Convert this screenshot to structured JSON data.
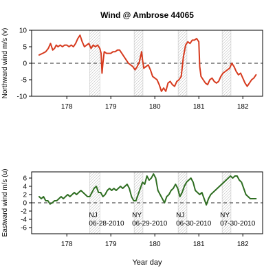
{
  "title": "Wind @ Ambrose 44065",
  "xlabel": "Year day",
  "colors": {
    "north": "#d63a1e",
    "east": "#2f6e22",
    "hatch": "#bdbdbd",
    "axis": "#000000",
    "zero": "#555555"
  },
  "chart_data": [
    {
      "type": "line",
      "ylabel": "Northward wind m/s (v)",
      "xlim": [
        177.2,
        182.45
      ],
      "ylim": [
        -10,
        10
      ],
      "xticks": [
        178,
        179,
        180,
        181,
        182
      ],
      "yticks": [
        -10,
        -5,
        0,
        5,
        10
      ],
      "zero_line": 0,
      "shaded_spans": [
        [
          178.52,
          178.75
        ],
        [
          179.53,
          179.73
        ],
        [
          180.53,
          180.73
        ],
        [
          181.53,
          181.73
        ]
      ],
      "series": [
        {
          "x": [
            177.37,
            177.45,
            177.52,
            177.58,
            177.63,
            177.68,
            177.72,
            177.76,
            177.8,
            177.85,
            177.9,
            177.95,
            178.0,
            178.05,
            178.1,
            178.15,
            178.2,
            178.25,
            178.3,
            178.35,
            178.4,
            178.45,
            178.5,
            178.55,
            178.6,
            178.65,
            178.7,
            178.75,
            178.78,
            178.8,
            178.82,
            178.85,
            178.9,
            178.95,
            179.0,
            179.05,
            179.1,
            179.15,
            179.2,
            179.25,
            179.3,
            179.35,
            179.4,
            179.45,
            179.5,
            179.55,
            179.6,
            179.65,
            179.7,
            179.72,
            179.75,
            179.8,
            179.85,
            179.9,
            179.95,
            180.0,
            180.05,
            180.1,
            180.15,
            180.2,
            180.25,
            180.3,
            180.35,
            180.4,
            180.45,
            180.5,
            180.55,
            180.6,
            180.65,
            180.7,
            180.75,
            180.8,
            180.85,
            180.9,
            180.95,
            181.0,
            181.02,
            181.05,
            181.1,
            181.15,
            181.2,
            181.25,
            181.3,
            181.35,
            181.4,
            181.45,
            181.5,
            181.55,
            181.6,
            181.65,
            181.7,
            181.75,
            181.8,
            181.85,
            181.9,
            181.95,
            182.0,
            182.05,
            182.1,
            182.15,
            182.2,
            182.25,
            182.3
          ],
          "y": [
            2.5,
            3.0,
            3.5,
            4.5,
            6.0,
            4.0,
            4.5,
            5.5,
            5.0,
            5.5,
            5.0,
            5.5,
            5.5,
            5.0,
            5.5,
            5.0,
            6.0,
            7.5,
            8.5,
            6.5,
            5.0,
            5.5,
            6.0,
            4.5,
            5.5,
            5.0,
            5.5,
            4.5,
            3.0,
            -3.0,
            0.0,
            3.5,
            3.0,
            3.0,
            3.0,
            3.5,
            3.5,
            4.0,
            4.0,
            3.0,
            2.0,
            1.0,
            0.0,
            -0.5,
            -1.0,
            -2.0,
            -1.0,
            0.5,
            3.5,
            1.0,
            -1.5,
            -1.0,
            -0.5,
            -2.0,
            -4.0,
            -4.5,
            -5.0,
            -6.5,
            -8.5,
            -7.5,
            -8.5,
            -6.0,
            -5.5,
            -6.5,
            -7.0,
            -5.5,
            -5.0,
            -4.0,
            2.0,
            5.5,
            6.5,
            6.0,
            7.0,
            7.0,
            7.5,
            6.5,
            -1.0,
            -4.0,
            -5.0,
            -6.0,
            -6.5,
            -5.0,
            -4.5,
            -5.5,
            -6.0,
            -5.5,
            -4.0,
            -3.0,
            -2.5,
            -2.0,
            -1.5,
            0.0,
            -1.0,
            -2.5,
            -3.5,
            -3.0,
            -4.5,
            -6.0,
            -7.0,
            -6.0,
            -5.0,
            -4.5,
            -3.5
          ]
        }
      ]
    },
    {
      "type": "line",
      "ylabel": "Eastward wind m/s (u)",
      "xlim": [
        177.2,
        182.45
      ],
      "ylim": [
        -7.5,
        7.5
      ],
      "xticks": [
        178,
        179,
        180,
        181,
        182
      ],
      "yticks": [
        -6,
        -4,
        -2,
        0,
        2,
        4,
        6
      ],
      "zero_line": 0,
      "shaded_spans": [
        [
          178.52,
          178.75
        ],
        [
          179.53,
          179.73
        ],
        [
          180.53,
          180.73
        ],
        [
          181.53,
          181.73
        ]
      ],
      "annotations": [
        {
          "x": 178.55,
          "lines": [
            "NJ",
            "06-28-2010"
          ]
        },
        {
          "x": 179.53,
          "lines": [
            "NY",
            "06-29-2010"
          ]
        },
        {
          "x": 180.53,
          "lines": [
            "NJ",
            "06-30-2010"
          ]
        },
        {
          "x": 181.53,
          "lines": [
            "NY",
            "07-30-2010"
          ]
        }
      ],
      "series": [
        {
          "x": [
            177.37,
            177.42,
            177.47,
            177.52,
            177.57,
            177.62,
            177.67,
            177.72,
            177.77,
            177.82,
            177.87,
            177.92,
            177.97,
            178.02,
            178.07,
            178.12,
            178.17,
            178.22,
            178.27,
            178.32,
            178.37,
            178.42,
            178.47,
            178.52,
            178.57,
            178.62,
            178.67,
            178.72,
            178.77,
            178.82,
            178.87,
            178.92,
            178.97,
            179.02,
            179.07,
            179.12,
            179.17,
            179.22,
            179.27,
            179.32,
            179.37,
            179.42,
            179.47,
            179.52,
            179.57,
            179.62,
            179.67,
            179.72,
            179.77,
            179.82,
            179.87,
            179.92,
            179.97,
            180.02,
            180.07,
            180.12,
            180.17,
            180.22,
            180.27,
            180.32,
            180.37,
            180.42,
            180.47,
            180.52,
            180.57,
            180.62,
            180.67,
            180.72,
            180.77,
            180.82,
            180.87,
            180.92,
            180.97,
            181.02,
            181.07,
            181.12,
            181.17,
            181.22,
            181.27,
            181.32,
            181.37,
            181.42,
            181.47,
            181.52,
            181.57,
            181.62,
            181.67,
            181.72,
            181.77,
            181.82,
            181.87,
            181.92,
            181.97,
            182.02,
            182.07,
            182.12,
            182.17,
            182.22,
            182.3
          ],
          "y": [
            1.5,
            1.0,
            1.5,
            0.5,
            0.5,
            -0.3,
            0.0,
            0.5,
            0.5,
            1.0,
            1.5,
            1.0,
            1.5,
            2.0,
            1.5,
            2.0,
            2.5,
            2.0,
            2.5,
            3.0,
            2.5,
            2.0,
            1.5,
            1.5,
            2.5,
            3.5,
            4.0,
            2.5,
            2.5,
            1.5,
            2.0,
            3.0,
            3.5,
            3.0,
            3.5,
            3.0,
            3.5,
            4.0,
            3.5,
            4.0,
            4.5,
            3.5,
            1.5,
            0.5,
            0.5,
            2.0,
            3.5,
            5.0,
            4.5,
            6.5,
            5.5,
            6.0,
            7.0,
            6.0,
            3.0,
            2.0,
            1.0,
            0.0,
            1.5,
            2.0,
            3.0,
            3.5,
            4.5,
            3.5,
            1.5,
            2.5,
            4.0,
            5.0,
            5.5,
            6.0,
            5.0,
            3.0,
            2.5,
            2.0,
            2.5,
            1.0,
            -0.5,
            1.0,
            2.0,
            2.5,
            3.0,
            3.5,
            4.0,
            4.5,
            5.0,
            5.5,
            6.0,
            6.5,
            6.0,
            6.5,
            6.5,
            5.5,
            5.0,
            3.5,
            2.0,
            1.5,
            1.0,
            1.0,
            1.0
          ]
        }
      ]
    }
  ]
}
